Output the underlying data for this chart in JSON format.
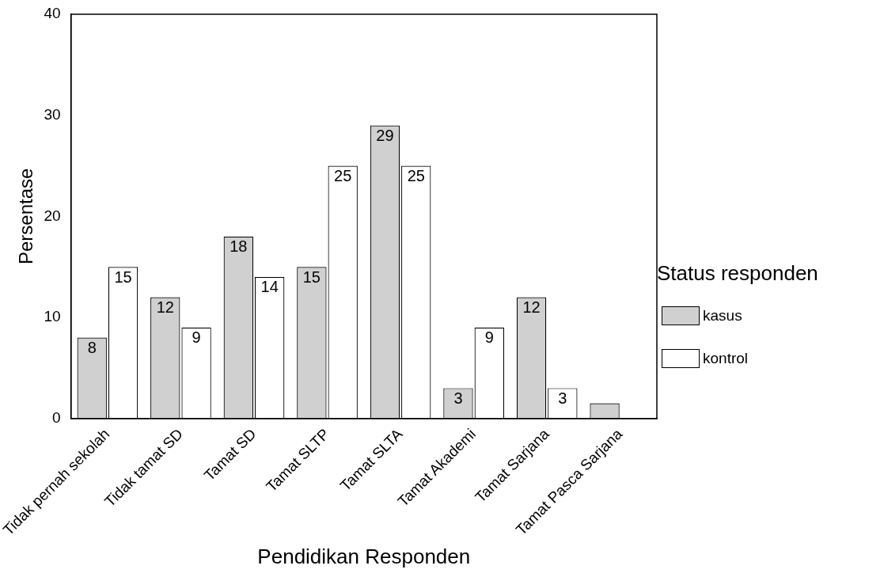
{
  "chart_data": {
    "type": "bar",
    "xlabel": "Pendidikan Responden",
    "ylabel": "Persentase",
    "legend_title": "Status responden",
    "legend": "right",
    "grid": false,
    "categories": [
      "Tidak pernah sekolah",
      "Tidak tamat SD",
      "Tamat SD",
      "Tamat SLTP",
      "Tamat SLTA",
      "Tamat Akademi",
      "Tamat Sarjana",
      "Tamat Pasca Sarjana"
    ],
    "ylim": [
      0,
      40
    ],
    "yticks": [
      0,
      10,
      20,
      30,
      40
    ],
    "series": [
      {
        "name": "kasus",
        "color": "#d0d0d0",
        "values": [
          8,
          12,
          18,
          15,
          29,
          3,
          12,
          1.5
        ],
        "value_labels": [
          "8",
          "12",
          "18",
          "15",
          "29",
          "3",
          "12",
          null
        ]
      },
      {
        "name": "kontrol",
        "color": "#ffffff",
        "values": [
          15,
          9,
          14,
          25,
          25,
          9,
          3,
          0
        ],
        "value_labels": [
          "15",
          "9",
          "14",
          "25",
          "25",
          "9",
          "3",
          null
        ]
      }
    ]
  }
}
